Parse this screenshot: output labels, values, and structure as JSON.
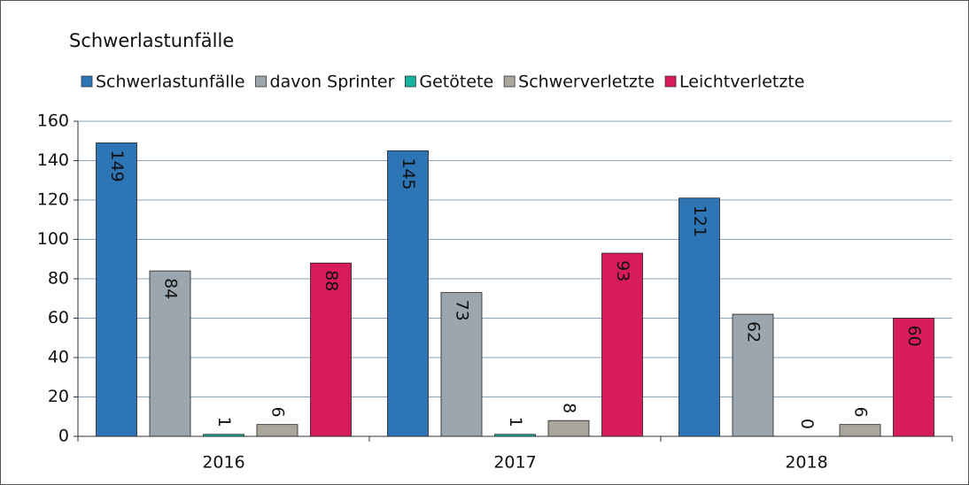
{
  "chart_data": {
    "type": "bar",
    "title": "Schwerlastunfälle",
    "categories": [
      "2016",
      "2017",
      "2018"
    ],
    "series": [
      {
        "name": "Schwerlastunfälle",
        "color": "#2e75b6",
        "label_color": "#ffffff",
        "values": [
          149,
          145,
          121
        ]
      },
      {
        "name": "davon Sprinter",
        "color": "#9ba6ae",
        "label_color": "#111111",
        "values": [
          84,
          73,
          62
        ]
      },
      {
        "name": "Getötete",
        "color": "#17b3a0",
        "label_color": "#111111",
        "values": [
          1,
          1,
          0
        ]
      },
      {
        "name": "Schwerverletzte",
        "color": "#aaa69b",
        "label_color": "#111111",
        "values": [
          6,
          8,
          6
        ]
      },
      {
        "name": "Leichtverletzte",
        "color": "#d81b5c",
        "label_color": "#ffffff",
        "values": [
          88,
          93,
          60
        ]
      }
    ],
    "ylim": [
      0,
      160
    ],
    "yticks": [
      0,
      20,
      40,
      60,
      80,
      100,
      120,
      140,
      160
    ],
    "grid": true,
    "legend": "top"
  }
}
